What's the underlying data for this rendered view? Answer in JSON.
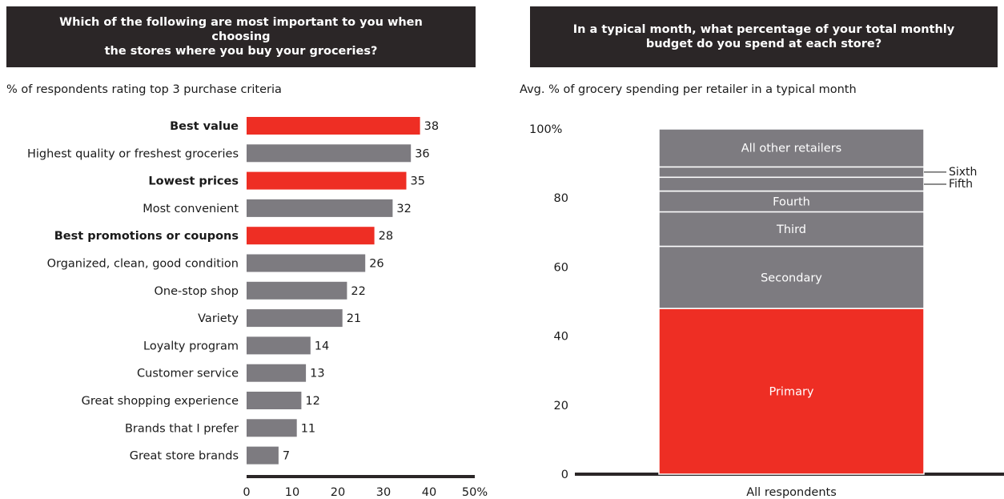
{
  "left_panel": {
    "question": "Which of the following are most important to you when choosing\nthe stores where you buy your groceries?",
    "subtitle": "% of respondents rating top 3 purchase criteria"
  },
  "right_panel": {
    "question": "In a typical month, what percentage of your total monthly\nbudget do you spend at each store?",
    "subtitle": "Avg. % of grocery spending per retailer in a typical month"
  },
  "colors": {
    "highlight": "#ee2e24",
    "neutral": "#7d7b80",
    "header_bg": "#2b2627",
    "axis": "#2b2627"
  },
  "chart_data": [
    {
      "type": "bar",
      "orientation": "horizontal",
      "categories": [
        "Best value",
        "Highest quality or freshest groceries",
        "Lowest prices",
        "Most convenient",
        "Best promotions or coupons",
        "Organized, clean, good condition",
        "One-stop shop",
        "Variety",
        "Loyalty program",
        "Customer service",
        "Great shopping experience",
        "Brands that I prefer",
        "Great store brands"
      ],
      "values": [
        38,
        36,
        35,
        32,
        28,
        26,
        22,
        21,
        14,
        13,
        12,
        11,
        7
      ],
      "highlighted": [
        true,
        false,
        true,
        false,
        true,
        false,
        false,
        false,
        false,
        false,
        false,
        false,
        false
      ],
      "xlim": [
        0,
        50
      ],
      "xticks": [
        "0",
        "10",
        "20",
        "30",
        "40",
        "50%"
      ],
      "xlabel": "",
      "ylabel": ""
    },
    {
      "type": "bar",
      "stacked": true,
      "categories": [
        "All respondents"
      ],
      "segments": [
        {
          "name": "Primary",
          "value": 48,
          "highlight": true
        },
        {
          "name": "Secondary",
          "value": 18
        },
        {
          "name": "Third",
          "value": 10
        },
        {
          "name": "Fourth",
          "value": 6
        },
        {
          "name": "Fifth",
          "value": 4
        },
        {
          "name": "Sixth",
          "value": 3
        },
        {
          "name": "All other retailers",
          "value": 11
        }
      ],
      "ylim": [
        0,
        100
      ],
      "yticks": [
        "0",
        "20",
        "40",
        "60",
        "80",
        "100%"
      ],
      "xlabel": "All respondents",
      "ylabel": ""
    }
  ]
}
